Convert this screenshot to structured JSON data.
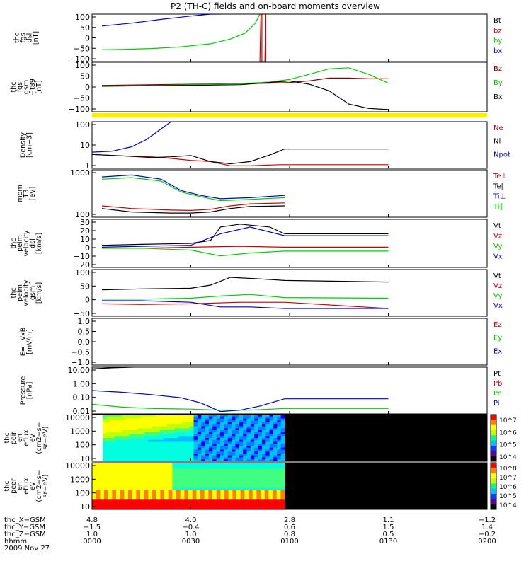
{
  "title": "P2 (TH-C) fields and on-board moments overview",
  "chart_data": [
    {
      "type": "line",
      "panel": "fgs_dsl",
      "ylabel": [
        "thc",
        "fgs",
        "dsl",
        "[nT]"
      ],
      "ylim": [
        -100,
        100
      ],
      "yticks": [
        "100",
        "50",
        "0",
        "−50",
        "−100"
      ],
      "series": [
        {
          "name": "Bt",
          "color": "#000000",
          "x": [],
          "y": []
        },
        {
          "name": "bz",
          "color": "#cc0000",
          "x": [
            1.7,
            1.71,
            1.72,
            1.72,
            1.75,
            1.76,
            1.76
          ],
          "y": [
            -100,
            100,
            100,
            -100,
            -100,
            100,
            -100
          ]
        },
        {
          "name": "by",
          "color": "#00cc00",
          "x": [
            0.1,
            0.3,
            0.6,
            0.9,
            1.2,
            1.4,
            1.55,
            1.65,
            1.7
          ],
          "y": [
            -50,
            -49,
            -45,
            -38,
            -25,
            -5,
            20,
            60,
            100
          ]
        },
        {
          "name": "bx",
          "color": "#0000cc",
          "x": [
            0.1,
            0.4,
            0.7,
            1.0,
            1.2,
            1.3
          ],
          "y": [
            50,
            62,
            78,
            92,
            100,
            100
          ]
        }
      ]
    },
    {
      "type": "line",
      "panel": "fgs_gsm",
      "ylabel": [
        "thc",
        "fgs",
        "gsm",
        "−t89",
        "[nT]"
      ],
      "ylim": [
        -125,
        100
      ],
      "yticks": [
        "100",
        "50",
        "0",
        "−50",
        "−100"
      ],
      "series": [
        {
          "name": "Bz",
          "color": "#880000",
          "x": [
            0.1,
            0.5,
            1.0,
            1.5,
            1.8,
            2.0,
            2.2,
            2.4,
            2.6,
            2.8,
            3.0
          ],
          "y": [
            -5,
            -3,
            0,
            3,
            5,
            8,
            15,
            28,
            28,
            25,
            25
          ]
        },
        {
          "name": "By",
          "color": "#00cc00",
          "x": [
            0.1,
            0.5,
            1.0,
            1.5,
            1.8,
            2.0,
            2.2,
            2.4,
            2.6,
            2.8,
            3.0
          ],
          "y": [
            -10,
            -7,
            -2,
            3,
            10,
            22,
            45,
            70,
            75,
            45,
            5
          ]
        },
        {
          "name": "Bx",
          "color": "#000000",
          "x": [
            0.1,
            0.5,
            1.0,
            1.5,
            1.8,
            2.0,
            2.2,
            2.4,
            2.6,
            2.8,
            3.0
          ],
          "y": [
            -8,
            -7,
            -5,
            -2,
            8,
            15,
            0,
            -30,
            -90,
            -110,
            -115
          ]
        }
      ]
    },
    {
      "type": "line",
      "panel": "density",
      "yscale": "log",
      "ylabel": [
        "Density",
        "[cm−3]"
      ],
      "ylim": [
        0.5,
        200
      ],
      "yticks": [
        "100",
        "10",
        "1"
      ],
      "series": [
        {
          "name": "Ne",
          "color": "#cc0000",
          "x": [
            0,
            0.3,
            0.6,
            0.8,
            1.0,
            1.2,
            1.4,
            1.6,
            1.9,
            3.0
          ],
          "y": [
            3,
            2.5,
            2.2,
            1.8,
            1.4,
            1.2,
            0.7,
            0.7,
            0.8,
            0.8
          ]
        },
        {
          "name": "Ni",
          "color": "#000000",
          "x": [
            0,
            0.3,
            0.6,
            0.8,
            1.0,
            1.2,
            1.4,
            1.6,
            1.8,
            1.95,
            3.0
          ],
          "y": [
            3,
            2.5,
            2,
            2.2,
            2.6,
            1.2,
            0.9,
            1.2,
            2.8,
            6,
            6
          ]
        },
        {
          "name": "Npot",
          "color": "#0000cc",
          "x": [
            0,
            0.2,
            0.4,
            0.55,
            0.7,
            0.8
          ],
          "y": [
            4,
            4.5,
            8,
            20,
            80,
            200
          ]
        }
      ]
    },
    {
      "type": "line",
      "panel": "temperature",
      "yscale": "log",
      "ylabel": [
        "mom",
        "T3",
        "[eV]"
      ],
      "ylim": [
        30,
        3000
      ],
      "yticks": [
        "1000",
        "100"
      ],
      "series": [
        {
          "name": "Te⊥",
          "color": "#cc0000",
          "x": [
            0.1,
            0.4,
            0.8,
            1.0,
            1.2,
            1.4,
            1.6,
            1.95
          ],
          "y": [
            90,
            70,
            60,
            58,
            65,
            90,
            110,
            120
          ]
        },
        {
          "name": "Te∥",
          "color": "#000000",
          "x": [
            0.1,
            0.4,
            0.8,
            1.0,
            1.2,
            1.4,
            1.6,
            1.95
          ],
          "y": [
            70,
            50,
            45,
            45,
            50,
            70,
            85,
            90
          ]
        },
        {
          "name": "Ti⊥",
          "color": "#0000cc",
          "x": [
            0.1,
            0.4,
            0.7,
            0.9,
            1.1,
            1.3,
            1.6,
            1.95
          ],
          "y": [
            1500,
            1800,
            1200,
            400,
            250,
            180,
            200,
            250
          ]
        },
        {
          "name": "Ti∥",
          "color": "#00cc00",
          "x": [
            0.1,
            0.4,
            0.7,
            0.9,
            1.1,
            1.3,
            1.6,
            1.95
          ],
          "y": [
            1200,
            1400,
            1000,
            350,
            220,
            150,
            170,
            200
          ]
        }
      ]
    },
    {
      "type": "line",
      "panel": "velocity_dsl",
      "ylabel": [
        "thc",
        "peim",
        "velocity",
        "dsl",
        "[km/s]"
      ],
      "ylim": [
        -20,
        30
      ],
      "yticks": [
        "30",
        "20",
        "10",
        "0",
        "−10",
        "−20"
      ],
      "series": [
        {
          "name": "Vt",
          "color": "#000000",
          "x": [
            0.1,
            0.5,
            1.0,
            1.2,
            1.3,
            1.5,
            1.8,
            1.95,
            3.0
          ],
          "y": [
            3,
            4,
            5,
            8,
            22,
            25,
            22,
            15,
            15
          ]
        },
        {
          "name": "Vz",
          "color": "#cc0000",
          "x": [
            0.1,
            0.5,
            1.0,
            1.5,
            1.95,
            3.0
          ],
          "y": [
            0,
            0,
            1,
            2,
            1,
            1
          ]
        },
        {
          "name": "Vy",
          "color": "#00cc00",
          "x": [
            0.1,
            0.5,
            1.0,
            1.3,
            1.6,
            1.95,
            3.0
          ],
          "y": [
            0,
            0,
            -2,
            -8,
            -5,
            -3,
            -3
          ]
        },
        {
          "name": "Vx",
          "color": "#0000cc",
          "x": [
            0.1,
            0.5,
            1.0,
            1.3,
            1.6,
            1.95,
            3.0
          ],
          "y": [
            1,
            2,
            3,
            15,
            22,
            13,
            13
          ]
        }
      ]
    },
    {
      "type": "line",
      "panel": "velocity_gsm",
      "ylabel": [
        "thc",
        "peim",
        "velocity",
        "gsm",
        "[km/s]"
      ],
      "ylim": [
        -50,
        100
      ],
      "yticks": [
        "100",
        "50",
        "0",
        "−50"
      ],
      "series": [
        {
          "name": "Vt",
          "color": "#000000",
          "x": [
            0.1,
            0.5,
            1.0,
            1.2,
            1.4,
            1.7,
            1.95,
            3.0
          ],
          "y": [
            35,
            38,
            40,
            50,
            75,
            70,
            65,
            60
          ]
        },
        {
          "name": "Vz",
          "color": "#cc0000",
          "x": [
            0.1,
            0.5,
            1.0,
            1.5,
            1.95,
            3.0
          ],
          "y": [
            -10,
            -12,
            -10,
            -5,
            -5,
            -25
          ]
        },
        {
          "name": "Vy",
          "color": "#00cc00",
          "x": [
            0.1,
            0.5,
            1.0,
            1.3,
            1.6,
            1.95,
            3.0
          ],
          "y": [
            5,
            5,
            8,
            15,
            20,
            10,
            8
          ]
        },
        {
          "name": "Vx",
          "color": "#0000cc",
          "x": [
            0.1,
            0.5,
            1.0,
            1.3,
            1.6,
            1.95,
            3.0
          ],
          "y": [
            0,
            0,
            -5,
            -20,
            -20,
            -25,
            -25
          ]
        }
      ]
    },
    {
      "type": "line",
      "panel": "e_field",
      "ylabel": [
        "E=−VxB",
        "[mV/m]"
      ],
      "ylim": [
        -1,
        1
      ],
      "yticks": [
        "1.0",
        "0.5",
        "0.0",
        "−0.5",
        "−1.0"
      ],
      "series": [
        {
          "name": "Ez",
          "color": "#cc0000",
          "x": [],
          "y": []
        },
        {
          "name": "Ey",
          "color": "#00cc00",
          "x": [],
          "y": []
        },
        {
          "name": "Ex",
          "color": "#0000cc",
          "x": [],
          "y": []
        }
      ]
    },
    {
      "type": "line",
      "panel": "pressure",
      "yscale": "log",
      "ylabel": [
        "Pressure",
        "[nPa]"
      ],
      "ylim": [
        0.008,
        20
      ],
      "yticks": [
        "10.00",
        "1.00",
        "0.10",
        "0.01"
      ],
      "series": [
        {
          "name": "Pt",
          "color": "#000000",
          "x": [
            0,
            0.2,
            0.4,
            0.6,
            0.8
          ],
          "y": [
            15,
            18,
            20,
            22,
            24
          ]
        },
        {
          "name": "Pb",
          "color": "#cc0000",
          "x": [],
          "y": []
        },
        {
          "name": "Pe",
          "color": "#00cc00",
          "x": [
            0,
            0.3,
            0.6,
            1.0,
            1.3,
            1.6,
            1.95,
            3.0
          ],
          "y": [
            0.04,
            0.025,
            0.02,
            0.018,
            0.015,
            0.015,
            0.02,
            0.02
          ]
        },
        {
          "name": "Pi",
          "color": "#0000cc",
          "x": [
            0,
            0.3,
            0.6,
            0.9,
            1.1,
            1.3,
            1.5,
            1.7,
            1.95,
            3.0
          ],
          "y": [
            0.4,
            0.3,
            0.2,
            0.12,
            0.05,
            0.012,
            0.015,
            0.03,
            0.1,
            0.1
          ]
        }
      ]
    },
    {
      "type": "heatmap",
      "panel": "ion_spectrogram",
      "ylabel": [
        "thc",
        "peir",
        "en",
        "eflux",
        "eV",
        "(cm2−s−",
        "sr−eV)"
      ],
      "yticks": [
        "10000",
        "1000",
        "100",
        "10"
      ],
      "colorbar_ticks": [
        "10^7",
        "10^6",
        "10^5",
        "10^4"
      ],
      "data_end_x": 1.95
    },
    {
      "type": "heatmap",
      "panel": "electron_spectrogram",
      "ylabel": [
        "thc",
        "peer",
        "en",
        "eflux",
        "eV",
        "(cm2−s−",
        "sr−eV)"
      ],
      "yticks": [
        "10000",
        "1000",
        "100",
        "10"
      ],
      "colorbar_ticks": [
        "10^8",
        "10^7",
        "10^6",
        "10^5",
        "10^4"
      ],
      "data_end_x": 1.95
    }
  ],
  "xaxis": {
    "rows": [
      {
        "label": "thc_X−GSM",
        "values": [
          "4.8",
          "4.0",
          "2.8",
          "1.1",
          "−1.2"
        ]
      },
      {
        "label": "thc_Y−GSM",
        "values": [
          "−1.5",
          "−0.4",
          "0.6",
          "1.5",
          "1.4"
        ]
      },
      {
        "label": "thc_Z−GSM",
        "values": [
          "1.0",
          "1.0",
          "0.8",
          "0.5",
          "−0.2"
        ]
      },
      {
        "label": "hhmm",
        "values": [
          "0000",
          "0030",
          "0100",
          "0130",
          "0200"
        ]
      }
    ],
    "date": "2009 Nov 27",
    "xlim": [
      0,
      4
    ]
  }
}
